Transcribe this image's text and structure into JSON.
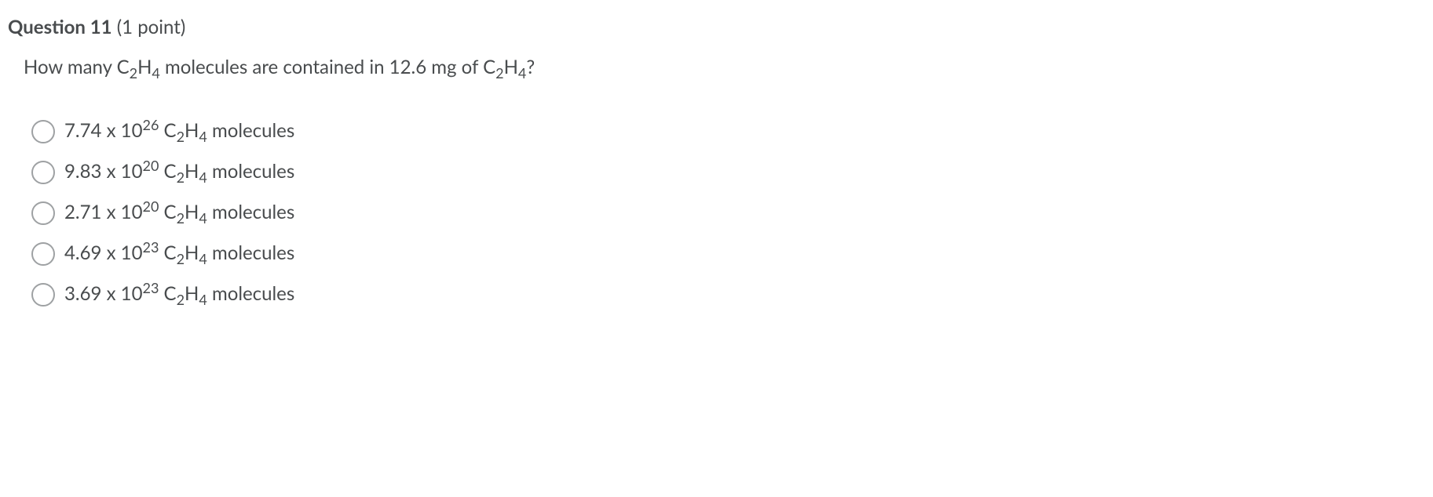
{
  "header": {
    "title_bold": "Question 11",
    "points": " (1 point)"
  },
  "question": {
    "prefix": "How many C",
    "sub1": "2",
    "mid1": "H",
    "sub2": "4",
    "mid2": " molecules are contained in 12.6 mg of C",
    "sub3": "2",
    "mid3": "H",
    "sub4": "4",
    "suffix": "?"
  },
  "options": [
    {
      "coef": "7.74 x 10",
      "exp": "26",
      "mid1": " C",
      "s1": "2",
      "mid2": "H",
      "s2": "4",
      "tail": " molecules"
    },
    {
      "coef": "9.83 x 10",
      "exp": "20",
      "mid1": " C",
      "s1": "2",
      "mid2": "H",
      "s2": "4",
      "tail": " molecules"
    },
    {
      "coef": "2.71 x 10",
      "exp": "20",
      "mid1": " C",
      "s1": "2",
      "mid2": "H",
      "s2": "4",
      "tail": " molecules"
    },
    {
      "coef": "4.69 x 10",
      "exp": "23",
      "mid1": " C",
      "s1": "2",
      "mid2": "H",
      "s2": "4",
      "tail": " molecules"
    },
    {
      "coef": "3.69 x 10",
      "exp": "23",
      "mid1": " C",
      "s1": "2",
      "mid2": "H",
      "s2": "4",
      "tail": " molecules"
    }
  ],
  "colors": {
    "text": "#494c4e",
    "radio_border": "#9ea1a3",
    "background": "#ffffff"
  }
}
